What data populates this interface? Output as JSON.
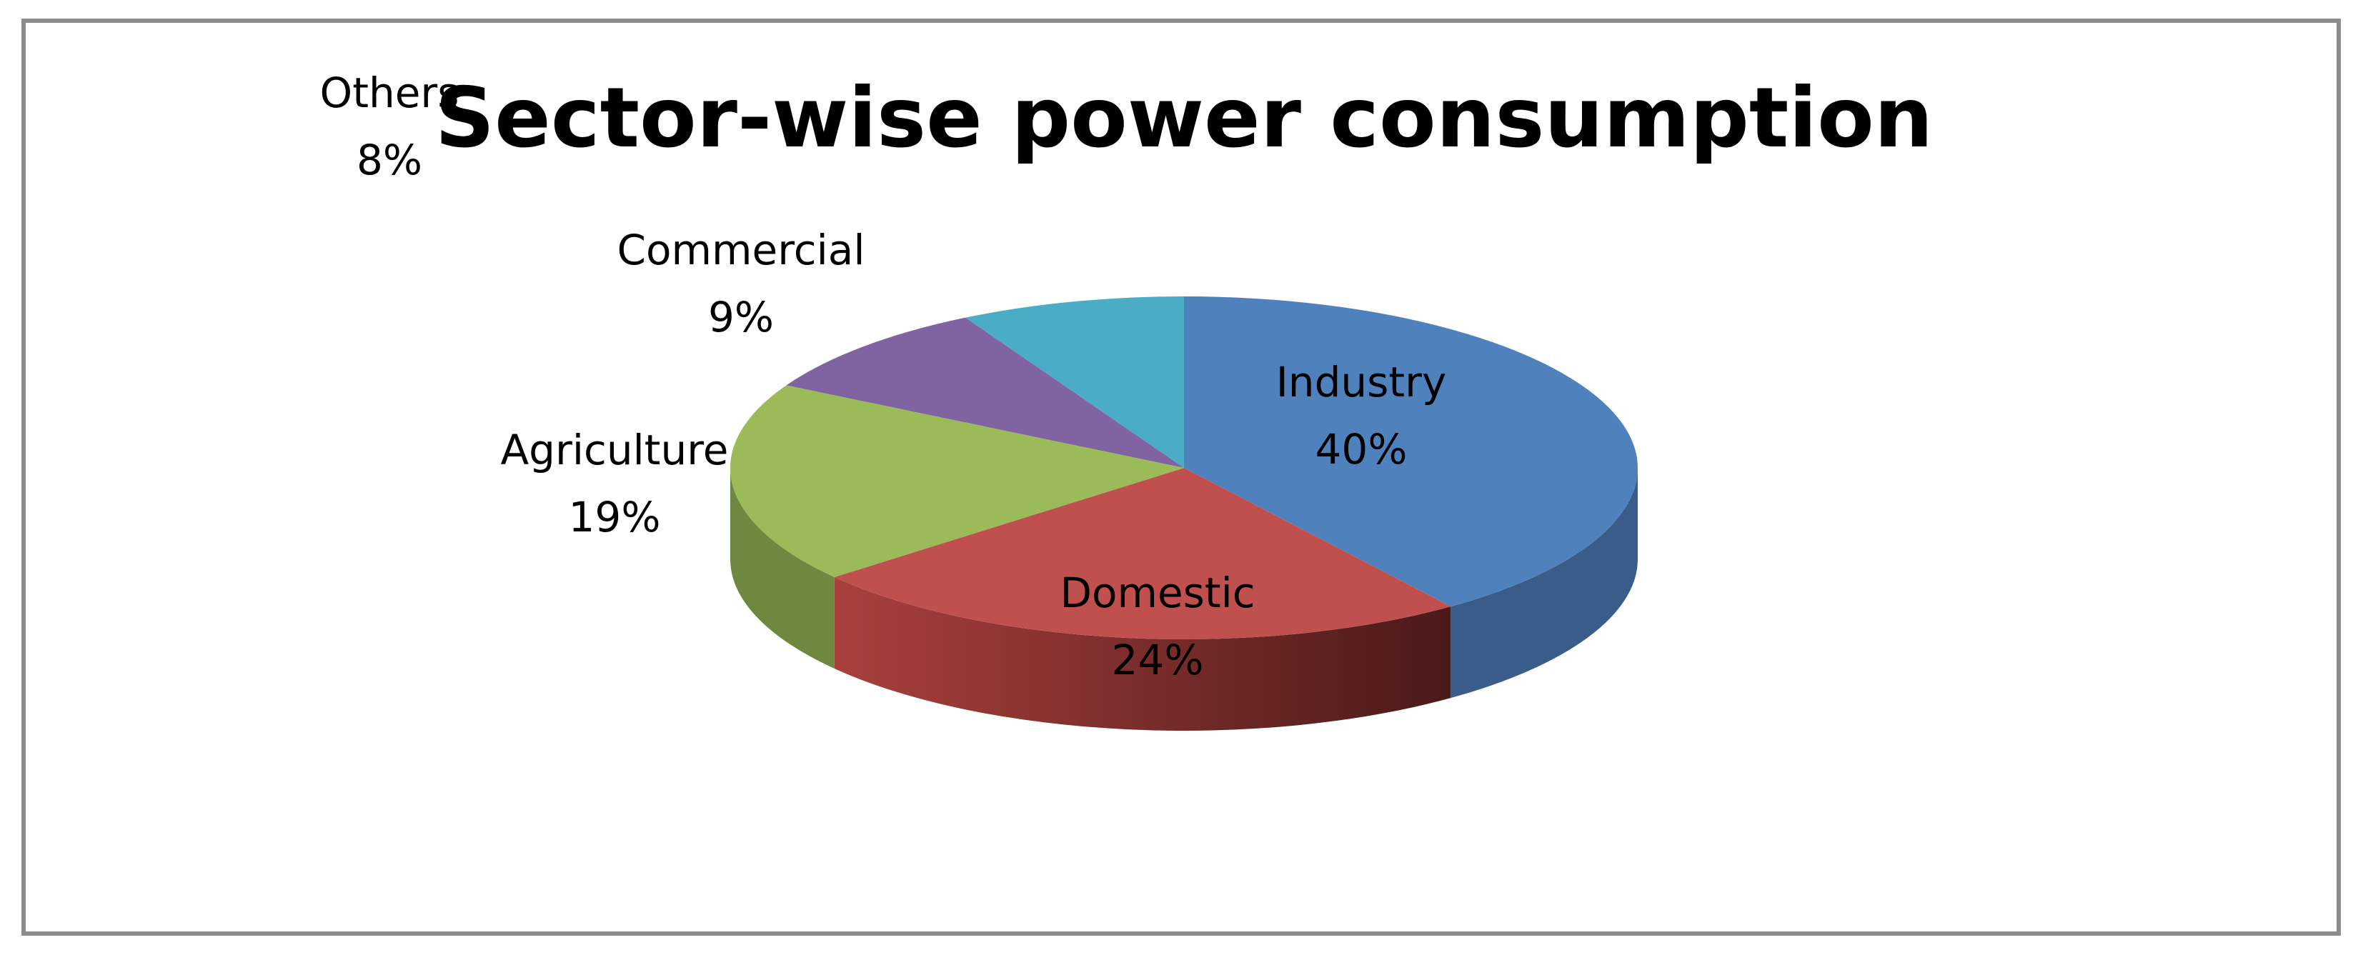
{
  "chart_data": {
    "type": "pie",
    "title": "Sector-wise power consumption",
    "categories": [
      "Industry",
      "Domestic",
      "Agriculture",
      "Commercial",
      "Others"
    ],
    "values": [
      40,
      24,
      19,
      9,
      8
    ],
    "value_labels": [
      "40%",
      "24%",
      "19%",
      "9%",
      "8%"
    ],
    "colors": [
      "#4f81bd",
      "#c0504d",
      "#9bbb59",
      "#8064a2",
      "#4bacc6"
    ],
    "style": "3d",
    "legend": "none"
  }
}
